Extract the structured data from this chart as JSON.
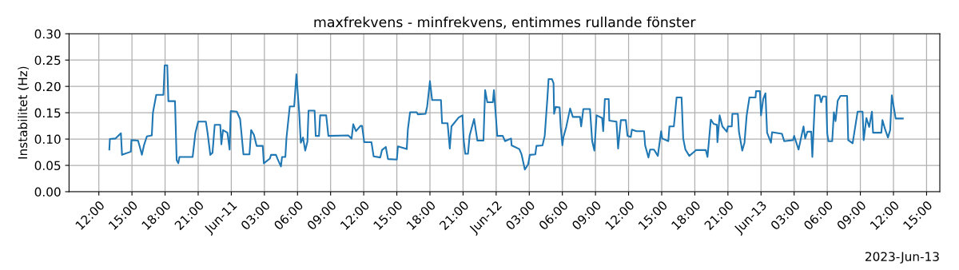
{
  "chart_data": {
    "type": "line",
    "title": "maxfrekvens - minfrekvens, entimmes rullande fönster",
    "ylabel": "Instabilitet (Hz)",
    "annotations": [
      "2023-Jun-13"
    ],
    "xlim": [
      "2023-06-10T09:18",
      "2023-06-13T16:12"
    ],
    "xticks": [
      {
        "value": "2023-06-10T12:00",
        "label": "12:00"
      },
      {
        "value": "2023-06-10T15:00",
        "label": "15:00"
      },
      {
        "value": "2023-06-10T18:00",
        "label": "18:00"
      },
      {
        "value": "2023-06-10T21:00",
        "label": "21:00"
      },
      {
        "value": "2023-06-11T00:00",
        "label": "Jun-11"
      },
      {
        "value": "2023-06-11T03:00",
        "label": "03:00"
      },
      {
        "value": "2023-06-11T06:00",
        "label": "06:00"
      },
      {
        "value": "2023-06-11T09:00",
        "label": "09:00"
      },
      {
        "value": "2023-06-11T12:00",
        "label": "12:00"
      },
      {
        "value": "2023-06-11T15:00",
        "label": "15:00"
      },
      {
        "value": "2023-06-11T18:00",
        "label": "18:00"
      },
      {
        "value": "2023-06-11T21:00",
        "label": "21:00"
      },
      {
        "value": "2023-06-12T00:00",
        "label": "Jun-12"
      },
      {
        "value": "2023-06-12T03:00",
        "label": "03:00"
      },
      {
        "value": "2023-06-12T06:00",
        "label": "06:00"
      },
      {
        "value": "2023-06-12T09:00",
        "label": "09:00"
      },
      {
        "value": "2023-06-12T12:00",
        "label": "12:00"
      },
      {
        "value": "2023-06-12T15:00",
        "label": "15:00"
      },
      {
        "value": "2023-06-12T18:00",
        "label": "18:00"
      },
      {
        "value": "2023-06-12T21:00",
        "label": "21:00"
      },
      {
        "value": "2023-06-13T00:00",
        "label": "Jun-13"
      },
      {
        "value": "2023-06-13T03:00",
        "label": "03:00"
      },
      {
        "value": "2023-06-13T06:00",
        "label": "06:00"
      },
      {
        "value": "2023-06-13T09:00",
        "label": "09:00"
      },
      {
        "value": "2023-06-13T12:00",
        "label": "12:00"
      },
      {
        "value": "2023-06-13T15:00",
        "label": "15:00"
      }
    ],
    "ylim": [
      0,
      0.3
    ],
    "yticks": [
      {
        "value": 0,
        "label": "0.00"
      },
      {
        "value": 0.05,
        "label": "0.05"
      },
      {
        "value": 0.1,
        "label": "0.10"
      },
      {
        "value": 0.15,
        "label": "0.15"
      },
      {
        "value": 0.2,
        "label": "0.20"
      },
      {
        "value": 0.25,
        "label": "0.25"
      },
      {
        "value": 0.3,
        "label": "0.30"
      }
    ],
    "grid": true,
    "series": [
      {
        "color": "#1f77b4",
        "x": [
          "2023-06-10T12:57",
          "2023-06-10T13:00",
          "2023-06-10T13:30",
          "2023-06-10T14:00",
          "2023-06-10T14:06",
          "2023-06-10T14:54",
          "2023-06-10T14:57",
          "2023-06-10T15:33",
          "2023-06-10T15:42",
          "2023-06-10T15:54",
          "2023-06-10T16:06",
          "2023-06-10T16:21",
          "2023-06-10T16:48",
          "2023-06-10T16:54",
          "2023-06-10T17:12",
          "2023-06-10T17:51",
          "2023-06-10T17:58",
          "2023-06-10T18:12",
          "2023-06-10T18:18",
          "2023-06-10T18:54",
          "2023-06-10T19:03",
          "2023-06-10T19:12",
          "2023-06-10T19:18",
          "2023-06-10T20:30",
          "2023-06-10T20:45",
          "2023-06-10T21:00",
          "2023-06-10T21:42",
          "2023-06-10T21:51",
          "2023-06-10T22:06",
          "2023-06-10T22:18",
          "2023-06-10T22:30",
          "2023-06-10T23:00",
          "2023-06-10T23:06",
          "2023-06-10T23:15",
          "2023-06-10T23:39",
          "2023-06-10T23:51",
          "2023-06-10T23:57",
          "2023-06-11T00:30",
          "2023-06-11T00:48",
          "2023-06-11T01:06",
          "2023-06-11T01:39",
          "2023-06-11T01:48",
          "2023-06-11T02:03",
          "2023-06-11T02:18",
          "2023-06-11T02:51",
          "2023-06-11T02:57",
          "2023-06-11T03:30",
          "2023-06-11T03:36",
          "2023-06-11T04:03",
          "2023-06-11T04:12",
          "2023-06-11T04:30",
          "2023-06-11T04:36",
          "2023-06-11T04:54",
          "2023-06-11T05:00",
          "2023-06-11T05:18",
          "2023-06-11T05:42",
          "2023-06-11T05:54",
          "2023-06-11T06:09",
          "2023-06-11T06:18",
          "2023-06-11T06:30",
          "2023-06-11T06:42",
          "2023-06-11T06:54",
          "2023-06-11T07:00",
          "2023-06-11T07:33",
          "2023-06-11T07:39",
          "2023-06-11T07:57",
          "2023-06-11T08:03",
          "2023-06-11T08:36",
          "2023-06-11T08:48",
          "2023-06-11T10:36",
          "2023-06-11T10:54",
          "2023-06-11T11:03",
          "2023-06-11T11:18",
          "2023-06-11T11:42",
          "2023-06-11T11:51",
          "2023-06-11T12:03",
          "2023-06-11T12:42",
          "2023-06-11T12:54",
          "2023-06-11T13:30",
          "2023-06-11T13:39",
          "2023-06-11T14:00",
          "2023-06-11T14:12",
          "2023-06-11T15:00",
          "2023-06-11T15:06",
          "2023-06-11T15:54",
          "2023-06-11T16:00",
          "2023-06-11T16:12",
          "2023-06-11T16:48",
          "2023-06-11T16:54",
          "2023-06-11T17:36",
          "2023-06-11T17:45",
          "2023-06-11T18:00",
          "2023-06-11T18:12",
          "2023-06-11T19:00",
          "2023-06-11T19:06",
          "2023-06-11T19:36",
          "2023-06-11T19:48",
          "2023-06-11T19:57",
          "2023-06-11T20:36",
          "2023-06-11T20:57",
          "2023-06-11T21:03",
          "2023-06-11T21:12",
          "2023-06-11T21:27",
          "2023-06-11T21:36",
          "2023-06-11T22:00",
          "2023-06-11T22:18",
          "2023-06-11T22:51",
          "2023-06-11T23:00",
          "2023-06-11T23:12",
          "2023-06-11T23:42",
          "2023-06-11T23:48",
          "2023-06-12T00:06",
          "2023-06-12T00:36",
          "2023-06-12T00:48",
          "2023-06-12T01:21",
          "2023-06-12T01:24",
          "2023-06-12T02:06",
          "2023-06-12T02:18",
          "2023-06-12T02:36",
          "2023-06-12T02:54",
          "2023-06-12T03:03",
          "2023-06-12T03:33",
          "2023-06-12T03:39",
          "2023-06-12T04:12",
          "2023-06-12T04:24",
          "2023-06-12T04:39",
          "2023-06-12T04:45",
          "2023-06-12T05:03",
          "2023-06-12T05:12",
          "2023-06-12T05:15",
          "2023-06-12T05:24",
          "2023-06-12T05:45",
          "2023-06-12T05:51",
          "2023-06-12T06:00",
          "2023-06-12T06:06",
          "2023-06-12T06:21",
          "2023-06-12T06:42",
          "2023-06-12T06:57",
          "2023-06-12T07:36",
          "2023-06-12T07:42",
          "2023-06-12T07:54",
          "2023-06-12T08:30",
          "2023-06-12T08:42",
          "2023-06-12T08:54",
          "2023-06-12T09:06",
          "2023-06-12T09:36",
          "2023-06-12T09:42",
          "2023-06-12T09:51",
          "2023-06-12T10:12",
          "2023-06-12T10:15",
          "2023-06-12T10:54",
          "2023-06-12T11:03",
          "2023-06-12T11:18",
          "2023-06-12T11:45",
          "2023-06-12T11:54",
          "2023-06-12T12:12",
          "2023-06-12T12:18",
          "2023-06-12T12:42",
          "2023-06-12T13:24",
          "2023-06-12T13:30",
          "2023-06-12T13:48",
          "2023-06-12T13:57",
          "2023-06-12T14:18",
          "2023-06-12T14:39",
          "2023-06-12T14:57",
          "2023-06-12T15:03",
          "2023-06-12T15:36",
          "2023-06-12T15:42",
          "2023-06-12T16:06",
          "2023-06-12T16:21",
          "2023-06-12T16:48",
          "2023-06-12T16:57",
          "2023-06-12T17:09",
          "2023-06-12T17:30",
          "2023-06-12T17:54",
          "2023-06-12T18:06",
          "2023-06-12T19:00",
          "2023-06-12T19:09",
          "2023-06-12T19:18",
          "2023-06-12T19:27",
          "2023-06-12T19:42",
          "2023-06-12T20:00",
          "2023-06-12T20:03",
          "2023-06-12T20:15",
          "2023-06-12T20:30",
          "2023-06-12T20:54",
          "2023-06-12T21:00",
          "2023-06-12T21:21",
          "2023-06-12T21:24",
          "2023-06-12T21:54",
          "2023-06-12T22:00",
          "2023-06-12T22:18",
          "2023-06-12T22:30",
          "2023-06-12T22:42",
          "2023-06-12T22:57",
          "2023-06-12T23:30",
          "2023-06-12T23:33",
          "2023-06-12T23:54",
          "2023-06-13T00:00",
          "2023-06-13T00:12",
          "2023-06-13T00:24",
          "2023-06-13T00:33",
          "2023-06-13T00:54",
          "2023-06-13T01:00",
          "2023-06-13T01:54",
          "2023-06-13T02:06",
          "2023-06-13T02:54",
          "2023-06-13T03:00",
          "2023-06-13T03:24",
          "2023-06-13T03:51",
          "2023-06-13T04:00",
          "2023-06-13T04:12",
          "2023-06-13T04:33",
          "2023-06-13T04:39",
          "2023-06-13T04:54",
          "2023-06-13T05:18",
          "2023-06-13T05:27",
          "2023-06-13T05:36",
          "2023-06-13T05:54",
          "2023-06-13T06:00",
          "2023-06-13T06:06",
          "2023-06-13T06:27",
          "2023-06-13T06:36",
          "2023-06-13T06:45",
          "2023-06-13T06:57",
          "2023-06-13T07:12",
          "2023-06-13T07:48",
          "2023-06-13T07:54",
          "2023-06-13T08:18",
          "2023-06-13T08:45",
          "2023-06-13T09:12",
          "2023-06-13T09:18",
          "2023-06-13T09:33",
          "2023-06-13T09:48",
          "2023-06-13T10:03",
          "2023-06-13T10:09",
          "2023-06-13T10:54",
          "2023-06-13T11:00",
          "2023-06-13T11:15",
          "2023-06-13T11:30",
          "2023-06-13T11:42",
          "2023-06-13T11:51",
          "2023-06-13T12:12",
          "2023-06-13T12:51"
        ],
        "values": [
          0.08,
          0.1,
          0.101,
          0.111,
          0.07,
          0.076,
          0.098,
          0.097,
          0.086,
          0.07,
          0.089,
          0.105,
          0.107,
          0.15,
          0.184,
          0.184,
          0.24,
          0.24,
          0.172,
          0.172,
          0.06,
          0.054,
          0.066,
          0.066,
          0.112,
          0.133,
          0.133,
          0.112,
          0.07,
          0.074,
          0.127,
          0.127,
          0.09,
          0.117,
          0.112,
          0.08,
          0.153,
          0.152,
          0.138,
          0.071,
          0.071,
          0.117,
          0.108,
          0.087,
          0.087,
          0.054,
          0.063,
          0.07,
          0.07,
          0.062,
          0.048,
          0.066,
          0.066,
          0.102,
          0.162,
          0.162,
          0.223,
          0.152,
          0.093,
          0.103,
          0.078,
          0.095,
          0.154,
          0.154,
          0.106,
          0.106,
          0.145,
          0.145,
          0.106,
          0.107,
          0.101,
          0.128,
          0.115,
          0.125,
          0.125,
          0.094,
          0.094,
          0.067,
          0.065,
          0.079,
          0.085,
          0.062,
          0.061,
          0.086,
          0.081,
          0.118,
          0.151,
          0.151,
          0.147,
          0.148,
          0.162,
          0.21,
          0.174,
          0.174,
          0.13,
          0.13,
          0.082,
          0.124,
          0.141,
          0.145,
          0.1,
          0.072,
          0.072,
          0.107,
          0.138,
          0.097,
          0.097,
          0.193,
          0.17,
          0.17,
          0.193,
          0.106,
          0.106,
          0.096,
          0.101,
          0.088,
          0.081,
          0.071,
          0.042,
          0.052,
          0.07,
          0.071,
          0.087,
          0.088,
          0.106,
          0.18,
          0.214,
          0.214,
          0.206,
          0.148,
          0.161,
          0.16,
          0.123,
          0.088,
          0.104,
          0.123,
          0.158,
          0.142,
          0.142,
          0.124,
          0.157,
          0.157,
          0.096,
          0.078,
          0.145,
          0.14,
          0.115,
          0.176,
          0.176,
          0.135,
          0.133,
          0.082,
          0.136,
          0.136,
          0.106,
          0.104,
          0.118,
          0.115,
          0.115,
          0.088,
          0.065,
          0.08,
          0.08,
          0.068,
          0.115,
          0.101,
          0.096,
          0.124,
          0.124,
          0.179,
          0.179,
          0.101,
          0.08,
          0.068,
          0.075,
          0.079,
          0.079,
          0.066,
          0.101,
          0.137,
          0.129,
          0.127,
          0.094,
          0.145,
          0.124,
          0.114,
          0.124,
          0.124,
          0.148,
          0.148,
          0.114,
          0.078,
          0.093,
          0.145,
          0.179,
          0.179,
          0.191,
          0.191,
          0.145,
          0.176,
          0.187,
          0.112,
          0.093,
          0.113,
          0.11,
          0.096,
          0.098,
          0.106,
          0.08,
          0.124,
          0.101,
          0.114,
          0.114,
          0.066,
          0.183,
          0.183,
          0.17,
          0.181,
          0.181,
          0.111,
          0.096,
          0.096,
          0.151,
          0.134,
          0.173,
          0.182,
          0.182,
          0.098,
          0.092,
          0.152,
          0.152,
          0.098,
          0.14,
          0.123,
          0.152,
          0.112,
          0.112,
          0.136,
          0.118,
          0.103,
          0.117,
          0.183,
          0.139,
          0.139
        ]
      }
    ]
  }
}
